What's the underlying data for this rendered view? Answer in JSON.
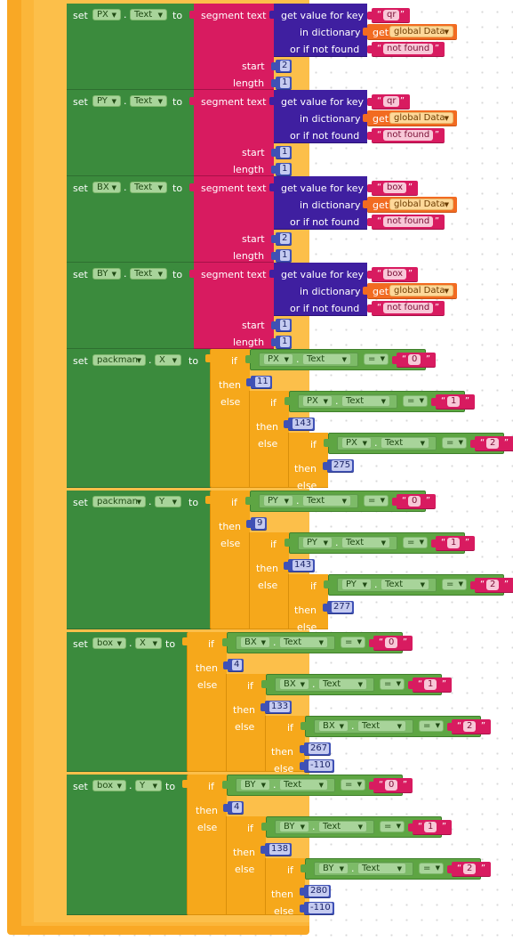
{
  "labels": {
    "set": "set",
    "to": "to",
    "dot": ".",
    "text": "Text",
    "segment_text": "segment  text",
    "get_value_for_key": "get value for key",
    "in_dictionary": "in dictionary",
    "or_if_not_found": "or if not found",
    "get": "get",
    "start": "start",
    "length": "length",
    "if": "if",
    "then": "then",
    "else": "else",
    "eq": "=",
    "quote_open": "“",
    "quote_close": "”"
  },
  "strings": {
    "global_data": "global Data",
    "not_found": "not found",
    "key_qr": "qr",
    "key_box": "box",
    "s0": "0",
    "s1": "1",
    "s2": "2"
  },
  "components": {
    "px": "PX",
    "py": "PY",
    "bx": "BX",
    "by": "BY",
    "packman": "packman",
    "box": "box",
    "prop_x": "X",
    "prop_y": "Y"
  },
  "numbers": {
    "px_start": "2",
    "px_len": "1",
    "py_start": "1",
    "py_len": "1",
    "bx_start": "2",
    "bx_len": "1",
    "by_start": "1",
    "by_len": "1",
    "pmx_0": "11",
    "pmx_1": "143",
    "pmx_2": "275",
    "pmy_0": "9",
    "pmy_1": "143",
    "pmy_2": "277",
    "bxx_0": "4",
    "bxx_1": "133",
    "bxx_2": "267",
    "bxx_else": "-110",
    "bxy_0": "4",
    "bxy_1": "138",
    "bxy_2": "280",
    "bxy_else": "-110"
  },
  "icons": {
    "dropdown": "dropdown-arrow-icon"
  },
  "colors": {
    "set_block": "#3b8b3d",
    "segment_block": "#d81b60",
    "dictionary_block": "#3f1fa0",
    "control_block": "#f6a81b",
    "compare_block": "#5ea543",
    "variable_block": "#f26b21",
    "number_block": "#3f51b5",
    "outer_event": "#f9a825"
  }
}
